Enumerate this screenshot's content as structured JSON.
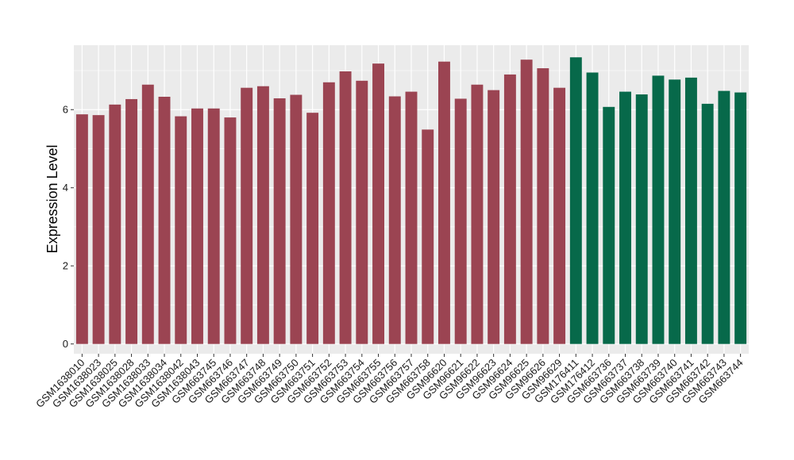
{
  "chart_data": {
    "type": "bar",
    "title": "",
    "xlabel": "",
    "ylabel": "Expression Level",
    "ylim": [
      -0.25,
      7.65
    ],
    "yticks": [
      0,
      2,
      4,
      6
    ],
    "grid": true,
    "legend": "none",
    "colors": {
      "group1": "#9b4452",
      "group2": "#07694a",
      "panel": "#ebebeb",
      "grid": "#ffffff"
    },
    "categories": [
      "GSM1638010",
      "GSM1638023",
      "GSM1638025",
      "GSM1638028",
      "GSM1638033",
      "GSM1638034",
      "GSM1638042",
      "GSM1638043",
      "GSM663745",
      "GSM663746",
      "GSM663747",
      "GSM663748",
      "GSM663749",
      "GSM663750",
      "GSM663751",
      "GSM663752",
      "GSM663753",
      "GSM663754",
      "GSM663755",
      "GSM663756",
      "GSM663757",
      "GSM663758",
      "GSM96620",
      "GSM96621",
      "GSM96622",
      "GSM96623",
      "GSM96624",
      "GSM96625",
      "GSM96626",
      "GSM96629",
      "GSM176411",
      "GSM176412",
      "GSM663736",
      "GSM663737",
      "GSM663738",
      "GSM663739",
      "GSM663740",
      "GSM663741",
      "GSM663742",
      "GSM663743",
      "GSM663744"
    ],
    "values": [
      5.88,
      5.86,
      6.13,
      6.27,
      6.64,
      6.33,
      5.83,
      6.03,
      6.03,
      5.8,
      6.56,
      6.6,
      6.29,
      6.38,
      5.92,
      6.7,
      6.98,
      6.74,
      7.18,
      6.34,
      6.46,
      5.49,
      7.23,
      6.28,
      6.64,
      6.5,
      6.9,
      7.28,
      7.06,
      6.56,
      7.34,
      6.95,
      6.07,
      6.46,
      6.39,
      6.87,
      6.77,
      6.82,
      6.15,
      6.48,
      6.44
    ],
    "groups": [
      1,
      1,
      1,
      1,
      1,
      1,
      1,
      1,
      1,
      1,
      1,
      1,
      1,
      1,
      1,
      1,
      1,
      1,
      1,
      1,
      1,
      1,
      1,
      1,
      1,
      1,
      1,
      1,
      1,
      1,
      2,
      2,
      2,
      2,
      2,
      2,
      2,
      2,
      2,
      2,
      2
    ]
  }
}
